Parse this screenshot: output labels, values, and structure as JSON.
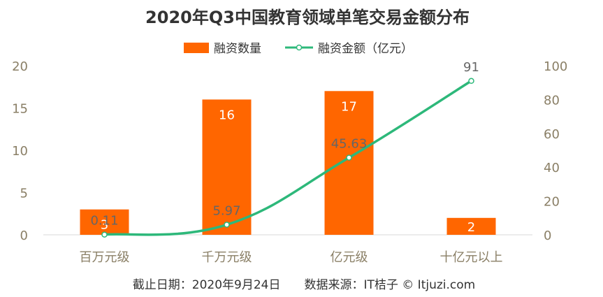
{
  "chart_data": {
    "type": "bar",
    "title": "2020年Q3中国教育领域单笔交易金额分布",
    "categories": [
      "百万元级",
      "千万元级",
      "亿元级",
      "十亿元以上"
    ],
    "series": [
      {
        "name": "融资数量",
        "type": "bar",
        "axis": "left",
        "values": [
          3,
          16,
          17,
          2
        ],
        "labels": [
          "3",
          "16",
          "17",
          "2"
        ]
      },
      {
        "name": "融资金额（亿元）",
        "type": "line",
        "axis": "right",
        "values": [
          0.11,
          5.97,
          45.63,
          91
        ],
        "labels": [
          "0.11",
          "5.97",
          "45.63",
          "91"
        ]
      }
    ],
    "left_axis": {
      "range": [
        0,
        20
      ],
      "ticks": [
        "0",
        "5",
        "10",
        "15",
        "20"
      ]
    },
    "right_axis": {
      "range": [
        0,
        100
      ],
      "ticks": [
        "0",
        "20",
        "40",
        "60",
        "80",
        "100"
      ]
    },
    "legend_position": "top",
    "grid": false,
    "colors": {
      "bar": "#ff6600",
      "line": "#2db87a"
    }
  },
  "footer": {
    "source": "截止日期：2020年9月24日　　数据来源：IT桔子 © Itjuzi.com"
  }
}
